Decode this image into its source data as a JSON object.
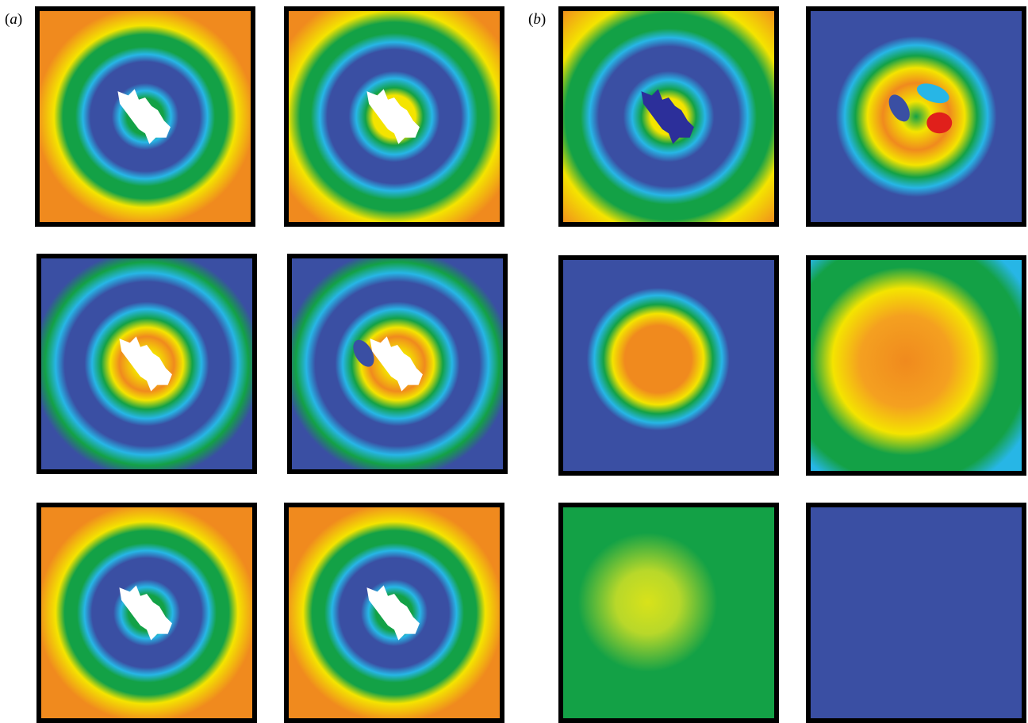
{
  "panel_labels": {
    "a": {
      "open": "(",
      "letter": "a",
      "close": ")"
    },
    "b": {
      "open": "(",
      "letter": "b",
      "close": ")"
    }
  },
  "colormap": {
    "blue": "#3a4fa3",
    "cyan": "#27b6e6",
    "green": "#13a146",
    "yellow": "#f4e400",
    "orange": "#f08a1e",
    "red": "#e0201b",
    "obstacle": "#ffffff"
  },
  "tiles": [
    {
      "name": "a-frame-1",
      "pattern": "rings-orange-corners",
      "obstacle": "white"
    },
    {
      "name": "a-frame-2",
      "pattern": "rings-yellow-center",
      "obstacle": "white"
    },
    {
      "name": "a-frame-3",
      "pattern": "rings-blue-corners",
      "obstacle": "white"
    },
    {
      "name": "a-frame-4",
      "pattern": "rings-blue-corners",
      "obstacle": "white"
    },
    {
      "name": "a-frame-5",
      "pattern": "rings-orange-corners",
      "obstacle": "white"
    },
    {
      "name": "a-frame-6",
      "pattern": "rings-orange-corners",
      "obstacle": "white"
    },
    {
      "name": "b-frame-1",
      "pattern": "rings-yellow-corners",
      "obstacle": "dark-blue"
    },
    {
      "name": "b-frame-2",
      "pattern": "rings-red-spot",
      "obstacle": "none"
    },
    {
      "name": "b-frame-3",
      "pattern": "orange-blob",
      "obstacle": "none"
    },
    {
      "name": "b-frame-4",
      "pattern": "large-orange-blob",
      "obstacle": "none"
    },
    {
      "name": "b-frame-5",
      "pattern": "green-yellow-blob",
      "obstacle": "none"
    },
    {
      "name": "b-frame-6",
      "pattern": "uniform-blue",
      "obstacle": "none"
    }
  ]
}
